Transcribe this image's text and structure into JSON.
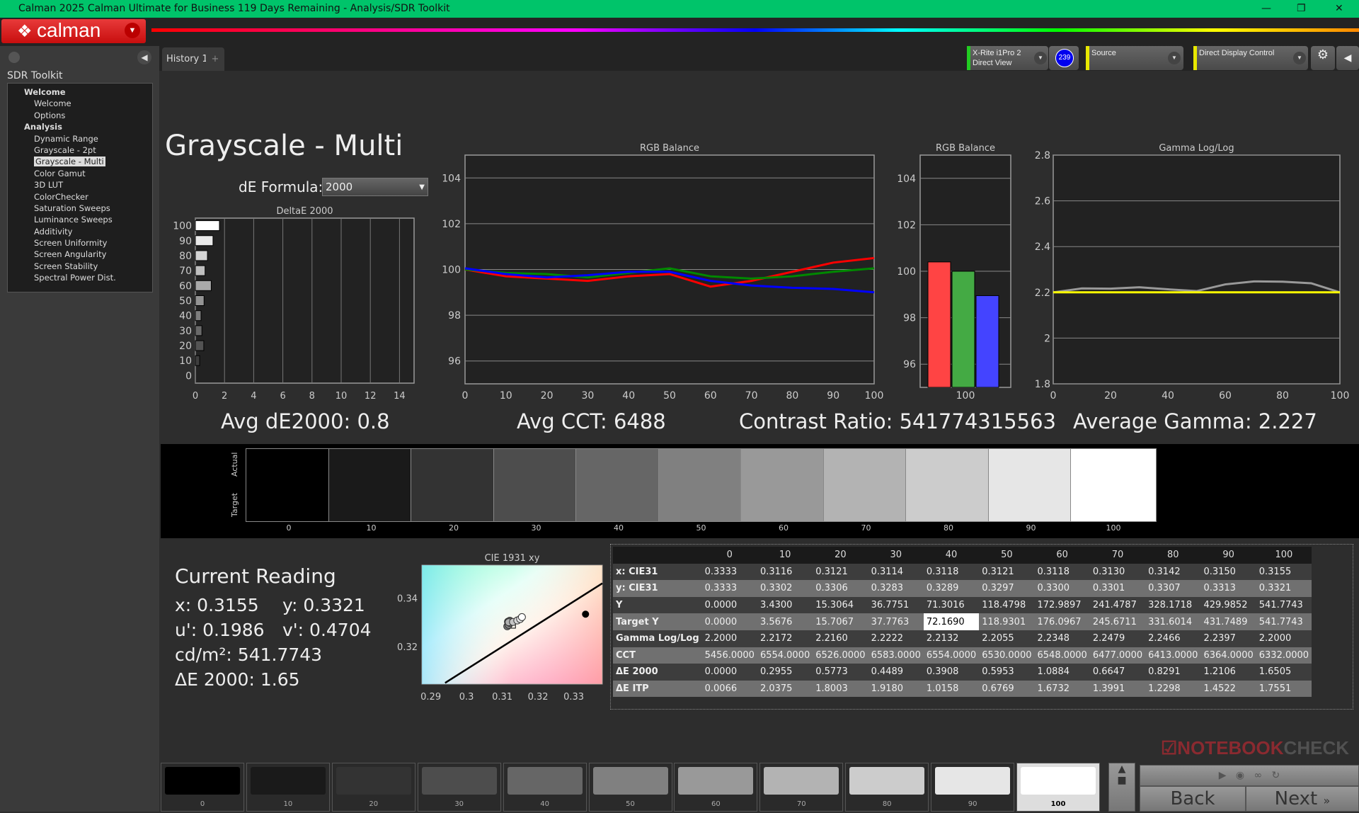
{
  "window": {
    "title": "Calman 2025 Calman Ultimate for Business 119 Days Remaining  - Analysis/SDR Toolkit",
    "minimize": "—",
    "maximize": "❐",
    "close": "✕"
  },
  "logo": {
    "text": "calman"
  },
  "sidebar": {
    "header": "SDR Toolkit",
    "groups": [
      {
        "label": "Welcome",
        "items": [
          "Welcome",
          "Options"
        ]
      },
      {
        "label": "Analysis",
        "items": [
          "Dynamic Range",
          "Grayscale - 2pt",
          "Grayscale - Multi",
          "Color Gamut",
          "3D LUT",
          "ColorChecker",
          "Saturation Sweeps",
          "Luminance Sweeps",
          "Additivity",
          "Screen Uniformity",
          "Screen Angularity",
          "Screen Stability",
          "Spectral Power Dist."
        ]
      }
    ],
    "selected": "Grayscale - Multi"
  },
  "tabs": [
    {
      "label": "History 1"
    },
    {
      "label": "+"
    }
  ],
  "devices": {
    "meter_line1": "X-Rite i1Pro 2",
    "meter_line2": "Direct View",
    "meter_badge": "239",
    "source": "Source",
    "display": "Direct Display Control",
    "meter_color": "#22cc22",
    "source_color": "#e8e800",
    "display_color": "#e8e800"
  },
  "page": {
    "title": "Grayscale - Multi",
    "de_formula_label": "dE Formula:",
    "de_formula_value": "2000"
  },
  "stats": {
    "avg_de": "Avg dE2000: 0.8",
    "avg_cct": "Avg CCT: 6488",
    "contrast": "Contrast Ratio: 541774315563",
    "avg_gamma": "Average Gamma: 2.227"
  },
  "chart_data": [
    {
      "type": "bar",
      "orientation": "horizontal",
      "title": "DeltaE 2000",
      "categories": [
        "0",
        "10",
        "20",
        "30",
        "40",
        "50",
        "60",
        "70",
        "80",
        "90",
        "100"
      ],
      "values": [
        0,
        0.2955,
        0.5773,
        0.4489,
        0.3908,
        0.5953,
        1.0884,
        0.6647,
        0.8291,
        1.2106,
        1.6505
      ],
      "xlim": [
        0,
        15
      ],
      "xticks": [
        "0",
        "2",
        "4",
        "6",
        "8",
        "10",
        "12",
        "14"
      ],
      "grid": true
    },
    {
      "type": "line",
      "title": "RGB Balance",
      "x": [
        0,
        10,
        20,
        30,
        40,
        50,
        60,
        70,
        80,
        90,
        100
      ],
      "ylim": [
        95,
        105
      ],
      "yticks": [
        "96",
        "98",
        "100",
        "102",
        "104"
      ],
      "xticks": [
        "0",
        "10",
        "20",
        "30",
        "40",
        "50",
        "60",
        "70",
        "80",
        "90",
        "100"
      ],
      "grid": true,
      "series": [
        {
          "color": "#ff0000",
          "values": [
            100,
            99.7,
            99.6,
            99.5,
            99.7,
            99.8,
            99.25,
            99.5,
            99.9,
            100.3,
            100.5
          ]
        },
        {
          "color": "#008800",
          "values": [
            100,
            99.85,
            99.8,
            99.65,
            99.85,
            100.05,
            99.7,
            99.6,
            99.7,
            99.9,
            100.05
          ]
        },
        {
          "color": "#0000ff",
          "values": [
            100.05,
            99.8,
            99.65,
            99.75,
            99.9,
            99.9,
            99.5,
            99.3,
            99.2,
            99.15,
            99.0
          ]
        }
      ]
    },
    {
      "type": "bar",
      "title": "RGB Balance",
      "categories": [
        "100"
      ],
      "ylim": [
        95,
        105
      ],
      "yticks": [
        "96",
        "98",
        "100",
        "102",
        "104"
      ],
      "series": [
        {
          "color": "#ff4444",
          "values": [
            100.4
          ]
        },
        {
          "color": "#44aa44",
          "values": [
            100.0
          ]
        },
        {
          "color": "#4444ff",
          "values": [
            98.95
          ]
        }
      ]
    },
    {
      "type": "line",
      "title": "Gamma Log/Log",
      "x": [
        0,
        10,
        20,
        30,
        40,
        50,
        60,
        70,
        80,
        90,
        100
      ],
      "xlim": [
        0,
        100
      ],
      "ylim": [
        1.8,
        2.8
      ],
      "yticks": [
        "1.8",
        "2",
        "2.2",
        "2.4",
        "2.6",
        "2.8"
      ],
      "xticks": [
        "0",
        "20",
        "40",
        "60",
        "80",
        "100"
      ],
      "grid": true,
      "series": [
        {
          "color": "#999999",
          "values": [
            2.2,
            2.2172,
            2.216,
            2.2222,
            2.2132,
            2.2055,
            2.2348,
            2.2479,
            2.2466,
            2.2397,
            2.2
          ]
        },
        {
          "color": "#ffff00",
          "values": [
            2.2,
            2.2,
            2.2,
            2.2,
            2.2,
            2.2,
            2.2,
            2.2,
            2.2,
            2.2,
            2.2
          ]
        }
      ]
    },
    {
      "type": "scatter",
      "title": "CIE 1931 xy",
      "xlim": [
        0.2875,
        0.338
      ],
      "ylim": [
        0.3045,
        0.3535
      ],
      "xticks": [
        "0.29",
        "0.3",
        "0.31",
        "0.32",
        "0.33"
      ],
      "yticks": [
        "0.32",
        "0.34"
      ],
      "points_x": [
        0.3116,
        0.3121,
        0.3114,
        0.3118,
        0.3121,
        0.3118,
        0.313,
        0.3142,
        0.315,
        0.3155
      ],
      "points_y": [
        0.3302,
        0.3306,
        0.3283,
        0.3289,
        0.3297,
        0.33,
        0.3301,
        0.3307,
        0.3313,
        0.3321
      ],
      "target": [
        0.3127,
        0.329
      ],
      "black_point": [
        0.3333,
        0.3333
      ]
    }
  ],
  "swatches": {
    "actual_label": "Actual",
    "target_label": "Target",
    "levels": [
      "0",
      "10",
      "20",
      "30",
      "40",
      "50",
      "60",
      "70",
      "80",
      "90",
      "100"
    ]
  },
  "reading": {
    "title": "Current Reading",
    "x": "x: 0.3155",
    "y": "y: 0.3321",
    "u": "u': 0.1986",
    "v": "v': 0.4704",
    "cdm2": "cd/m²: 541.7743",
    "de": "ΔE 2000: 1.65"
  },
  "table": {
    "columns": [
      "0",
      "10",
      "20",
      "30",
      "40",
      "50",
      "60",
      "70",
      "80",
      "90",
      "100"
    ],
    "rows": [
      {
        "label": "x: CIE31",
        "values": [
          "0.3333",
          "0.3116",
          "0.3121",
          "0.3114",
          "0.3118",
          "0.3121",
          "0.3118",
          "0.3130",
          "0.3142",
          "0.3150",
          "0.3155"
        ]
      },
      {
        "label": "y: CIE31",
        "values": [
          "0.3333",
          "0.3302",
          "0.3306",
          "0.3283",
          "0.3289",
          "0.3297",
          "0.3300",
          "0.3301",
          "0.3307",
          "0.3313",
          "0.3321"
        ]
      },
      {
        "label": "Y",
        "values": [
          "0.0000",
          "3.4300",
          "15.3064",
          "36.7751",
          "71.3016",
          "118.4798",
          "172.9897",
          "241.4787",
          "328.1718",
          "429.9852",
          "541.7743"
        ]
      },
      {
        "label": "Target Y",
        "values": [
          "0.0000",
          "3.5676",
          "15.7067",
          "37.7763",
          "72.1690",
          "118.9301",
          "176.0967",
          "245.6711",
          "331.6014",
          "431.7489",
          "541.7743"
        ]
      },
      {
        "label": "Gamma Log/Log",
        "values": [
          "2.2000",
          "2.2172",
          "2.2160",
          "2.2222",
          "2.2132",
          "2.2055",
          "2.2348",
          "2.2479",
          "2.2466",
          "2.2397",
          "2.2000"
        ]
      },
      {
        "label": "CCT",
        "values": [
          "5456.0000",
          "6554.0000",
          "6526.0000",
          "6583.0000",
          "6554.0000",
          "6530.0000",
          "6548.0000",
          "6477.0000",
          "6413.0000",
          "6364.0000",
          "6332.0000"
        ]
      },
      {
        "label": "ΔE 2000",
        "values": [
          "0.0000",
          "0.2955",
          "0.5773",
          "0.4489",
          "0.3908",
          "0.5953",
          "1.0884",
          "0.6647",
          "0.8291",
          "1.2106",
          "1.6505"
        ]
      },
      {
        "label": "ΔE ITP",
        "values": [
          "0.0066",
          "2.0375",
          "1.8003",
          "1.9180",
          "1.0158",
          "0.6769",
          "1.6732",
          "1.3991",
          "1.2298",
          "1.4522",
          "1.7551"
        ]
      }
    ]
  },
  "bottom": {
    "selected": "100",
    "back": "Back",
    "next": "Next",
    "watermark": "NOTEBOOKCHECK"
  }
}
